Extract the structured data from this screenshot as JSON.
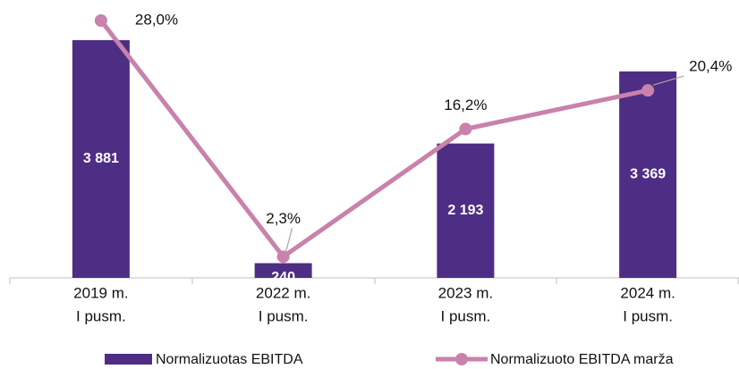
{
  "chart_data": {
    "type": "bar_line",
    "categories": [
      [
        "2019 m.",
        "I pusm."
      ],
      [
        "2022 m.",
        "I pusm."
      ],
      [
        "2023 m.",
        "I pusm."
      ],
      [
        "2024 m.",
        "I pusm."
      ]
    ],
    "series": [
      {
        "name": "Normalizuotas EBITDA",
        "type": "bar",
        "color": "#4e2d84",
        "values": [
          3881,
          240,
          2193,
          3369
        ],
        "value_labels": [
          "3 881",
          "240",
          "2 193",
          "3 369"
        ]
      },
      {
        "name": "Normalizuoto EBITDA marža",
        "type": "line",
        "axis": "y2",
        "color": "#c882ab",
        "values": [
          28.0,
          2.3,
          16.2,
          20.4
        ],
        "value_labels": [
          "28,0%",
          "2,3%",
          "16,2%",
          "20,4%"
        ]
      }
    ],
    "ylim": [
      0,
      4200
    ],
    "y2lim": [
      0,
      28
    ],
    "legend": "bottom"
  }
}
